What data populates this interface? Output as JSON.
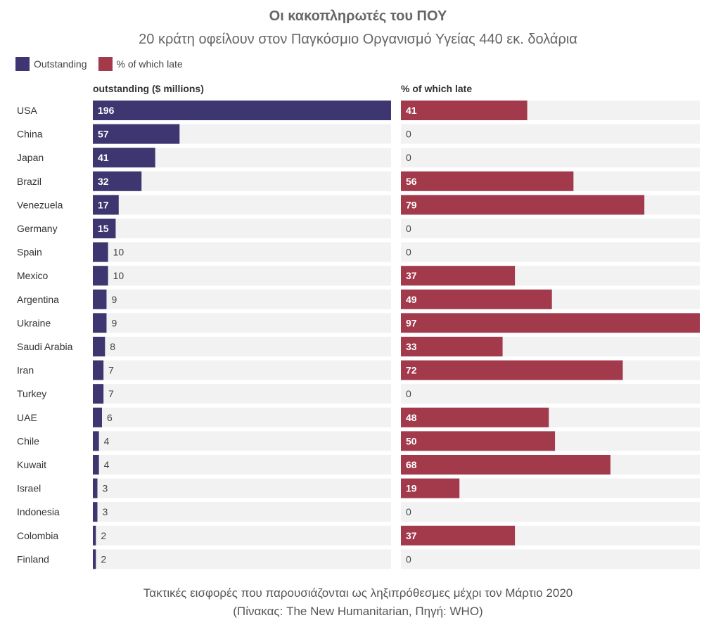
{
  "title": "Οι κακοπληρωτές του ΠΟΥ",
  "subtitle": "20 κράτη οφείλουν στον Παγκόσμιο Οργανισμό Υγείας 440 εκ. δολάρια",
  "legend": [
    {
      "label": "Outstanding",
      "color": "#3d3670"
    },
    {
      "label": "% of which late",
      "color": "#a23a4c"
    }
  ],
  "columns": {
    "left": "outstanding ($ millions)",
    "right": "% of which late"
  },
  "footer": {
    "line1": "Τακτικές εισφορές που παρουσιάζονται ως ληξιπρόθεσμες μέχρι τον Μάρτιο 2020",
    "line2": "(Πίνακας: The New Humanitarian, Πηγή: WHO)"
  },
  "chart_data": {
    "type": "bar",
    "categories": [
      "USA",
      "China",
      "Japan",
      "Brazil",
      "Venezuela",
      "Germany",
      "Spain",
      "Mexico",
      "Argentina",
      "Ukraine",
      "Saudi Arabia",
      "Iran",
      "Turkey",
      "UAE",
      "Chile",
      "Kuwait",
      "Israel",
      "Indonesia",
      "Colombia",
      "Finland"
    ],
    "series": [
      {
        "name": "Outstanding",
        "color": "#3d3670",
        "values": [
          196,
          57,
          41,
          32,
          17,
          15,
          10,
          10,
          9,
          9,
          8,
          7,
          7,
          6,
          4,
          4,
          3,
          3,
          2,
          2
        ],
        "xlim": [
          0,
          196
        ]
      },
      {
        "name": "% of which late",
        "color": "#a23a4c",
        "values": [
          41,
          0,
          0,
          56,
          79,
          0,
          0,
          37,
          49,
          97,
          33,
          72,
          0,
          48,
          50,
          68,
          19,
          0,
          37,
          0
        ],
        "xlim": [
          0,
          97
        ]
      }
    ],
    "track_color": "#f2f2f2"
  }
}
